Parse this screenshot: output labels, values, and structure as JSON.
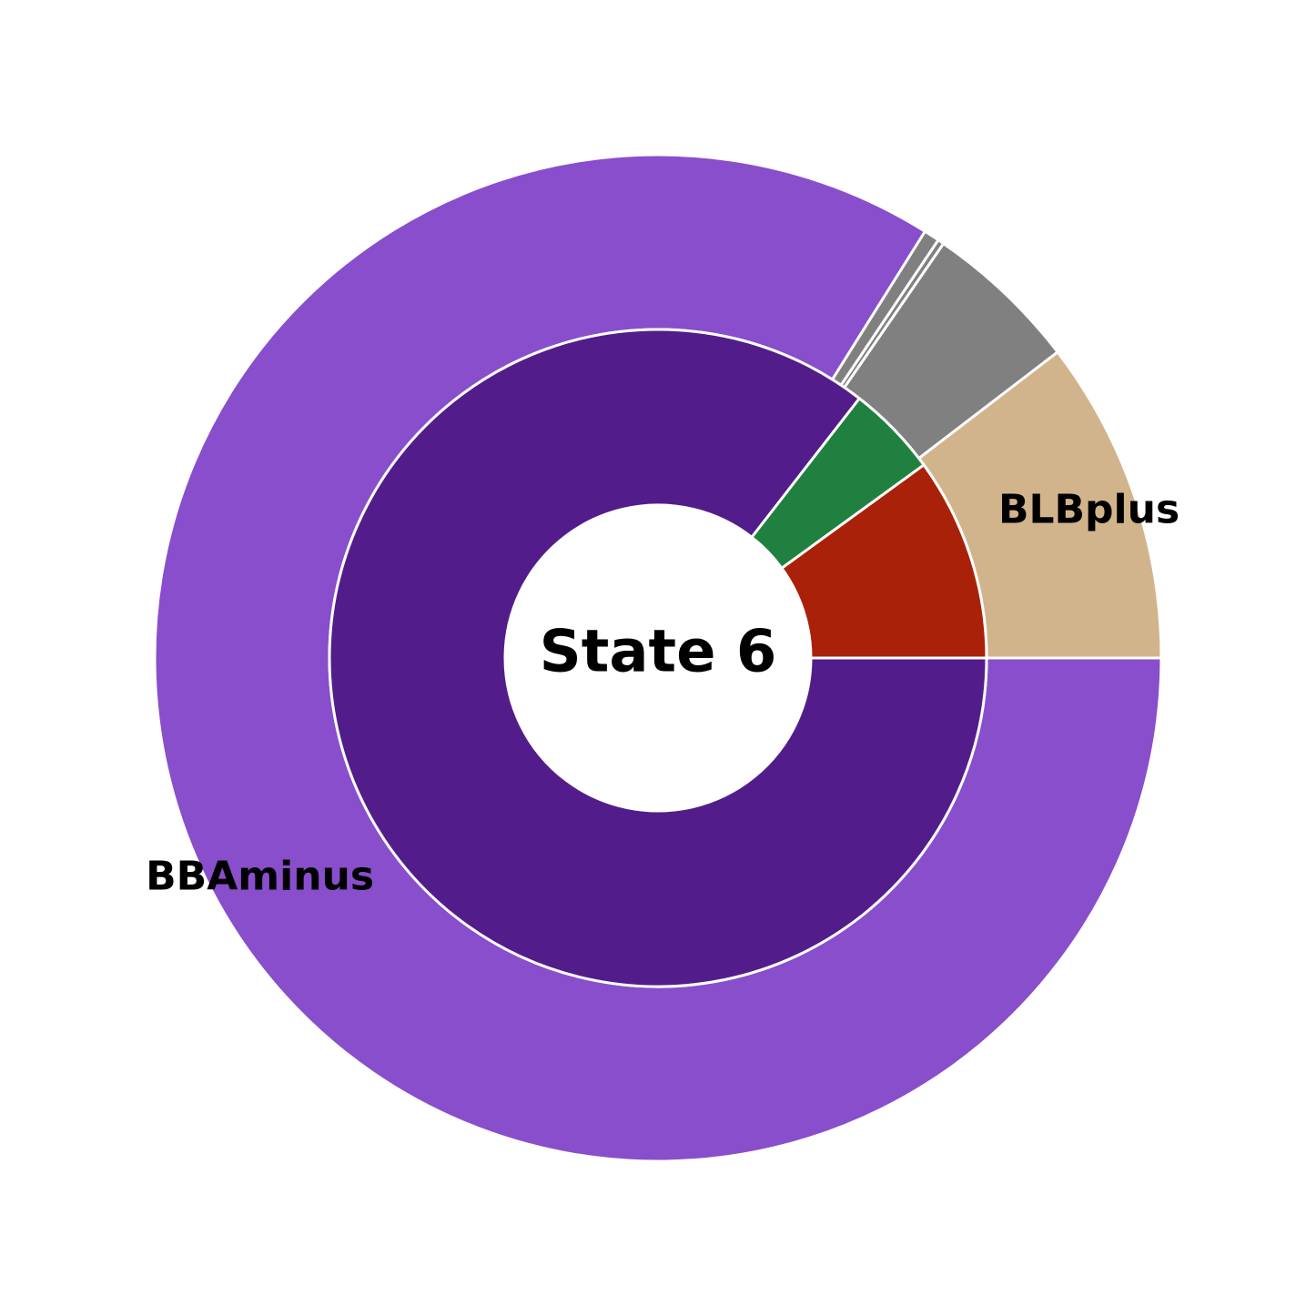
{
  "chart_data": {
    "type": "pie",
    "subtype": "nested-donut",
    "center_label": "State 6",
    "start_angle_deg": 0,
    "direction": "counterclockwise",
    "rings": [
      {
        "ring": "outer",
        "slices": [
          {
            "label": "BLBplus",
            "value": 10.4,
            "color": "#d2b48c",
            "show_label": true
          },
          {
            "label": "",
            "value": 5.0,
            "color": "#808080",
            "show_label": false
          },
          {
            "label": "",
            "value": 0.2,
            "color": "#808080",
            "show_label": false
          },
          {
            "label": "",
            "value": 0.5,
            "color": "#808080",
            "show_label": false
          },
          {
            "label": "BBAminus",
            "value": 83.9,
            "color": "#884ecb",
            "show_label": true
          }
        ]
      },
      {
        "ring": "inner",
        "slices": [
          {
            "label": "",
            "value": 10.0,
            "color": "#aa2109"
          },
          {
            "label": "",
            "value": 4.5,
            "color": "#208040"
          },
          {
            "label": "",
            "value": 85.5,
            "color": "#521d8a"
          }
        ]
      }
    ]
  }
}
